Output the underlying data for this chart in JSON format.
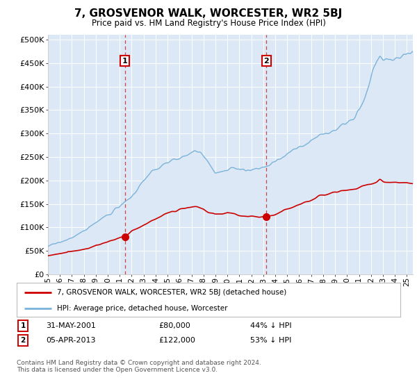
{
  "title": "7, GROSVENOR WALK, WORCESTER, WR2 5BJ",
  "subtitle": "Price paid vs. HM Land Registry's House Price Index (HPI)",
  "ylabel_values": [
    0,
    50000,
    100000,
    150000,
    200000,
    250000,
    300000,
    350000,
    400000,
    450000,
    500000
  ],
  "ylim": [
    0,
    510000
  ],
  "xlim_start": 1995.25,
  "xlim_end": 2025.5,
  "background_color": "#dce8f5",
  "grid_color": "#ffffff",
  "hpi_color": "#7ab3d9",
  "sale_color": "#cc0000",
  "marker1_date_x": 2001.42,
  "marker1_price": 80000,
  "marker2_date_x": 2013.26,
  "marker2_price": 122000,
  "legend_label1": "7, GROSVENOR WALK, WORCESTER, WR2 5BJ (detached house)",
  "legend_label2": "HPI: Average price, detached house, Worcester",
  "note1_label": "1",
  "note1_date": "31-MAY-2001",
  "note1_price": "£80,000",
  "note1_hpi": "44% ↓ HPI",
  "note2_label": "2",
  "note2_date": "05-APR-2013",
  "note2_price": "£122,000",
  "note2_hpi": "53% ↓ HPI",
  "footer": "Contains HM Land Registry data © Crown copyright and database right 2024.\nThis data is licensed under the Open Government Licence v3.0.",
  "x_tick_years": [
    1995,
    1996,
    1997,
    1998,
    1999,
    2000,
    2001,
    2002,
    2003,
    2004,
    2005,
    2006,
    2007,
    2008,
    2009,
    2010,
    2011,
    2012,
    2013,
    2014,
    2015,
    2016,
    2017,
    2018,
    2019,
    2020,
    2021,
    2022,
    2023,
    2024,
    2025
  ]
}
